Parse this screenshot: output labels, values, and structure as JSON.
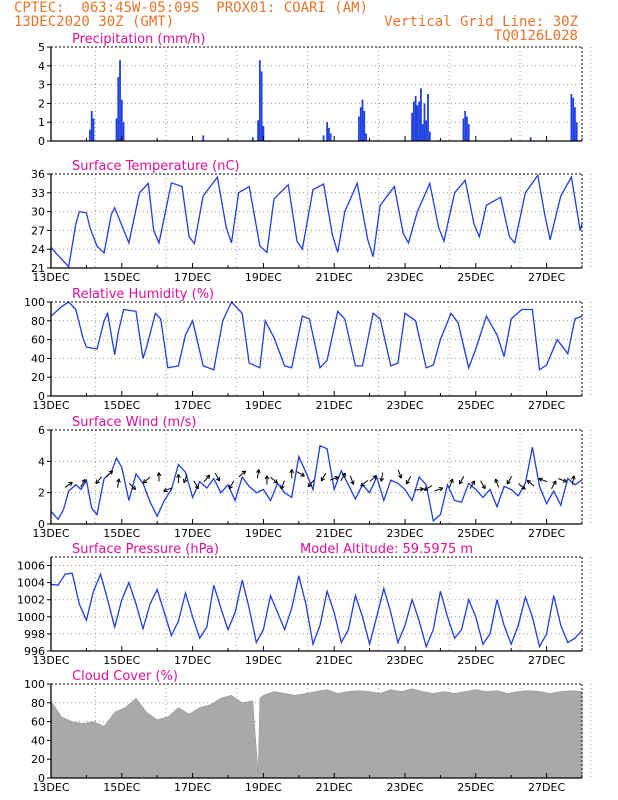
{
  "header": {
    "line1_left": "CPTEC:  063:45W-05:09S  PROX01: COARI (AM)",
    "line2_left": "13DEC2020 30Z (GMT)",
    "line2_right": "Vertical Grid Line: 30Z",
    "line3_right": "TQ0126L028"
  },
  "colors": {
    "header": "#e8752a",
    "title": "#e0109a",
    "series": "#1f3fe0",
    "cloud": "#a9a9a9",
    "grid": "#9a9a9a",
    "axis": "#000000"
  },
  "date_ticks": [
    "13DEC",
    "15DEC",
    "17DEC",
    "19DEC",
    "21DEC",
    "23DEC",
    "25DEC",
    "27DEC"
  ],
  "chart_data": [
    {
      "id": "precip",
      "type": "bar",
      "title": "Precipitation (mm/h)",
      "x_unit": "days since 13DEC 00Z",
      "ylim": [
        0,
        5
      ],
      "yticks": [
        "0",
        "1",
        "2",
        "3",
        "4",
        "5"
      ],
      "grid": true,
      "bars": [
        [
          1.1,
          0.6
        ],
        [
          1.15,
          1.6
        ],
        [
          1.2,
          1.2
        ],
        [
          1.85,
          1.2
        ],
        [
          1.9,
          3.4
        ],
        [
          1.95,
          4.3
        ],
        [
          2.0,
          2.2
        ],
        [
          2.05,
          1.0
        ],
        [
          4.3,
          0.3
        ],
        [
          5.7,
          0.2
        ],
        [
          5.85,
          1.1
        ],
        [
          5.9,
          4.3
        ],
        [
          5.95,
          3.7
        ],
        [
          6.0,
          0.8
        ],
        [
          7.7,
          0.3
        ],
        [
          7.8,
          1.0
        ],
        [
          7.85,
          0.7
        ],
        [
          7.9,
          0.4
        ],
        [
          8.7,
          1.3
        ],
        [
          8.75,
          1.8
        ],
        [
          8.8,
          2.2
        ],
        [
          8.85,
          1.6
        ],
        [
          8.9,
          0.4
        ],
        [
          10.2,
          1.5
        ],
        [
          10.25,
          2.1
        ],
        [
          10.3,
          2.4
        ],
        [
          10.35,
          1.9
        ],
        [
          10.4,
          2.1
        ],
        [
          10.45,
          2.8
        ],
        [
          10.5,
          0.9
        ],
        [
          10.55,
          2.0
        ],
        [
          10.6,
          1.1
        ],
        [
          10.65,
          2.5
        ],
        [
          10.7,
          0.5
        ],
        [
          11.65,
          1.2
        ],
        [
          11.7,
          1.6
        ],
        [
          11.75,
          1.3
        ],
        [
          11.8,
          0.9
        ],
        [
          13.55,
          0.2
        ],
        [
          14.7,
          2.5
        ],
        [
          14.75,
          2.3
        ],
        [
          14.8,
          1.8
        ],
        [
          14.85,
          1.0
        ]
      ]
    },
    {
      "id": "temp",
      "type": "line",
      "title": "Surface Temperature (nC)",
      "ylim": [
        21,
        36
      ],
      "yticks": [
        "21",
        "24",
        "27",
        "30",
        "33",
        "36"
      ],
      "grid": true,
      "x": [
        0,
        0.2,
        0.4,
        0.5,
        0.7,
        0.8,
        1.0,
        1.1,
        1.3,
        1.5,
        1.7,
        1.8,
        2.0,
        2.2,
        2.5,
        2.75,
        2.9,
        3.05,
        3.4,
        3.7,
        3.9,
        4.05,
        4.3,
        4.7,
        4.95,
        5.1,
        5.3,
        5.6,
        5.9,
        6.1,
        6.3,
        6.7,
        6.95,
        7.1,
        7.4,
        7.7,
        7.95,
        8.1,
        8.3,
        8.65,
        8.95,
        9.1,
        9.3,
        9.7,
        9.95,
        10.1,
        10.35,
        10.7,
        10.95,
        11.1,
        11.4,
        11.7,
        11.95,
        12.1,
        12.3,
        12.7,
        12.95,
        13.1,
        13.4,
        13.75,
        13.95,
        14.1,
        14.4,
        14.7,
        14.95,
        15.0
      ],
      "y": [
        24.3,
        23.0,
        21.8,
        21.2,
        28.0,
        30.0,
        29.8,
        27.5,
        24.5,
        23.4,
        29.5,
        30.6,
        27.8,
        25.0,
        33.0,
        34.5,
        27.0,
        25.0,
        34.6,
        34.0,
        26.0,
        24.9,
        32.5,
        35.5,
        27.5,
        25.0,
        33.0,
        34.0,
        24.5,
        23.5,
        32.0,
        34.3,
        25.3,
        24.0,
        33.5,
        34.4,
        26.3,
        23.5,
        30.0,
        34.5,
        25.5,
        22.8,
        31.0,
        34.0,
        26.5,
        25.0,
        30.0,
        34.5,
        27.5,
        25.3,
        33.0,
        35.0,
        28.0,
        26.0,
        31.0,
        32.3,
        26.0,
        25.0,
        33.0,
        35.8,
        29.5,
        25.5,
        32.5,
        35.5,
        27.0,
        28.0
      ]
    },
    {
      "id": "rh",
      "type": "line",
      "title": "Relative Humidity (%)",
      "ylim": [
        0,
        100
      ],
      "yticks": [
        "0",
        "20",
        "40",
        "60",
        "80",
        "100"
      ],
      "grid": true,
      "x": [
        0,
        0.3,
        0.5,
        0.7,
        0.9,
        1.0,
        1.3,
        1.5,
        1.6,
        1.8,
        1.9,
        2.05,
        2.4,
        2.6,
        2.7,
        2.95,
        3.1,
        3.3,
        3.6,
        3.8,
        4.0,
        4.3,
        4.6,
        4.85,
        5.1,
        5.4,
        5.6,
        5.9,
        6.05,
        6.3,
        6.6,
        6.8,
        7.1,
        7.3,
        7.6,
        7.8,
        8.1,
        8.3,
        8.6,
        8.8,
        9.1,
        9.3,
        9.6,
        9.8,
        10.0,
        10.3,
        10.6,
        10.8,
        11.0,
        11.3,
        11.5,
        11.8,
        12.0,
        12.3,
        12.6,
        12.8,
        13.0,
        13.3,
        13.6,
        13.8,
        14.0,
        14.3,
        14.6,
        14.8,
        15.0
      ],
      "y": [
        85,
        95,
        100,
        92,
        62,
        52,
        50,
        80,
        88,
        44,
        68,
        92,
        90,
        40,
        52,
        88,
        82,
        30,
        32,
        65,
        80,
        32,
        28,
        80,
        100,
        88,
        35,
        30,
        80,
        62,
        32,
        30,
        85,
        82,
        30,
        38,
        90,
        82,
        32,
        32,
        88,
        82,
        32,
        35,
        88,
        80,
        30,
        33,
        60,
        88,
        78,
        30,
        50,
        85,
        65,
        42,
        82,
        92,
        92,
        28,
        33,
        60,
        45,
        82,
        85
      ]
    },
    {
      "id": "wind",
      "type": "line",
      "title": "Surface Wind (m/s)",
      "ylim": [
        0,
        6
      ],
      "yticks": [
        "0",
        "2",
        "4",
        "6"
      ],
      "grid": true,
      "x": [
        0,
        0.2,
        0.35,
        0.5,
        0.7,
        0.85,
        1.0,
        1.15,
        1.3,
        1.5,
        1.7,
        1.85,
        2.0,
        2.2,
        2.4,
        2.6,
        2.8,
        3.0,
        3.2,
        3.4,
        3.6,
        3.8,
        4.0,
        4.2,
        4.4,
        4.6,
        4.8,
        5.0,
        5.2,
        5.4,
        5.6,
        5.8,
        6.0,
        6.2,
        6.4,
        6.6,
        6.8,
        7.0,
        7.2,
        7.4,
        7.6,
        7.8,
        8.0,
        8.2,
        8.4,
        8.6,
        8.8,
        9.0,
        9.2,
        9.4,
        9.6,
        9.8,
        10.0,
        10.2,
        10.4,
        10.6,
        10.8,
        11.0,
        11.2,
        11.4,
        11.6,
        11.8,
        12.0,
        12.2,
        12.4,
        12.6,
        12.8,
        13.0,
        13.2,
        13.4,
        13.6,
        13.8,
        14.0,
        14.2,
        14.4,
        14.6,
        14.8,
        15.0
      ],
      "y": [
        0.8,
        0.3,
        0.9,
        2.1,
        2.5,
        2.2,
        2.8,
        1.0,
        0.6,
        2.9,
        3.3,
        4.2,
        3.6,
        1.5,
        3.2,
        2.6,
        1.4,
        0.5,
        1.5,
        2.2,
        3.8,
        3.3,
        1.7,
        2.7,
        2.3,
        2.9,
        2.0,
        2.5,
        1.5,
        3.0,
        2.4,
        2.0,
        2.2,
        1.5,
        2.6,
        2.0,
        1.7,
        4.3,
        3.3,
        2.2,
        5.0,
        4.8,
        2.2,
        3.4,
        2.5,
        1.6,
        2.5,
        2.0,
        3.0,
        1.5,
        2.8,
        2.6,
        2.2,
        1.5,
        3.0,
        2.5,
        0.2,
        0.6,
        2.5,
        1.5,
        1.4,
        2.6,
        2.2,
        1.7,
        2.2,
        1.1,
        2.4,
        2.2,
        1.8,
        2.6,
        4.9,
        2.4,
        1.3,
        2.1,
        1.2,
        2.9,
        2.5,
        2.8
      ],
      "vectors": [
        [
          0.5,
          2.5,
          35
        ],
        [
          0.9,
          2.6,
          60
        ],
        [
          1.35,
          2.8,
          -130
        ],
        [
          1.65,
          3.2,
          45
        ],
        [
          1.9,
          2.6,
          80
        ],
        [
          2.3,
          2.4,
          -45
        ],
        [
          2.7,
          2.8,
          -140
        ],
        [
          3.05,
          3.0,
          90
        ],
        [
          3.3,
          2.2,
          -160
        ],
        [
          3.6,
          2.9,
          90
        ],
        [
          3.8,
          2.9,
          -110
        ],
        [
          4.1,
          2.5,
          -60
        ],
        [
          4.4,
          2.9,
          50
        ],
        [
          4.7,
          3.0,
          -60
        ],
        [
          5.1,
          2.5,
          -120
        ],
        [
          5.4,
          3.2,
          40
        ],
        [
          5.85,
          3.2,
          80
        ],
        [
          6.1,
          2.8,
          90
        ],
        [
          6.3,
          2.8,
          -40
        ],
        [
          6.55,
          2.5,
          -110
        ],
        [
          6.8,
          3.2,
          90
        ],
        [
          7.05,
          3.2,
          -30
        ],
        [
          7.35,
          2.6,
          -130
        ],
        [
          7.7,
          3.0,
          -120
        ],
        [
          8.0,
          2.9,
          20
        ],
        [
          8.25,
          3.0,
          60
        ],
        [
          8.5,
          2.8,
          -70
        ],
        [
          8.85,
          2.6,
          -140
        ],
        [
          9.1,
          2.9,
          40
        ],
        [
          9.35,
          3.0,
          -100
        ],
        [
          9.85,
          3.2,
          -70
        ],
        [
          10.1,
          2.8,
          -120
        ],
        [
          10.4,
          2.2,
          10
        ],
        [
          10.65,
          2.3,
          -150
        ],
        [
          10.95,
          2.2,
          20
        ],
        [
          11.3,
          2.6,
          70
        ],
        [
          11.6,
          2.8,
          -120
        ],
        [
          11.9,
          2.5,
          60
        ],
        [
          12.2,
          2.5,
          -60
        ],
        [
          12.6,
          2.6,
          110
        ],
        [
          12.95,
          2.8,
          -120
        ],
        [
          13.3,
          2.4,
          -40
        ],
        [
          13.55,
          2.6,
          140
        ],
        [
          13.9,
          2.8,
          160
        ],
        [
          14.2,
          2.5,
          60
        ],
        [
          14.45,
          2.8,
          -20
        ],
        [
          14.75,
          2.8,
          80
        ]
      ]
    },
    {
      "id": "pres",
      "type": "line",
      "title": "Surface Pressure (hPa)",
      "annotation": "Model Altitude: 59.5975 m",
      "ylim": [
        996,
        1007
      ],
      "yticks": [
        "996",
        "998",
        "1000",
        "1002",
        "1004",
        "1006"
      ],
      "grid": true,
      "x": [
        0,
        0.2,
        0.4,
        0.6,
        0.8,
        1.0,
        1.2,
        1.4,
        1.6,
        1.8,
        2.0,
        2.2,
        2.4,
        2.6,
        2.8,
        3.0,
        3.2,
        3.4,
        3.6,
        3.8,
        4.0,
        4.2,
        4.4,
        4.6,
        4.8,
        5.0,
        5.2,
        5.4,
        5.6,
        5.8,
        6.0,
        6.2,
        6.4,
        6.6,
        6.8,
        7.0,
        7.2,
        7.4,
        7.6,
        7.8,
        8.0,
        8.2,
        8.4,
        8.6,
        8.8,
        9.0,
        9.2,
        9.4,
        9.6,
        9.8,
        10.0,
        10.2,
        10.4,
        10.6,
        10.8,
        11.0,
        11.2,
        11.4,
        11.6,
        11.8,
        12.0,
        12.2,
        12.4,
        12.6,
        12.8,
        13.0,
        13.2,
        13.4,
        13.6,
        13.8,
        14.0,
        14.2,
        14.4,
        14.6,
        14.8,
        15.0
      ],
      "y": [
        1003.8,
        1003.7,
        1005.0,
        1005.1,
        1001.5,
        999.6,
        1003.0,
        1005.0,
        1002.0,
        998.8,
        1002.0,
        1004.0,
        1001.5,
        998.6,
        1001.5,
        1003.2,
        1000.5,
        997.8,
        999.5,
        1002.8,
        1000.0,
        997.5,
        998.8,
        1003.7,
        1001.0,
        998.5,
        1000.5,
        1004.3,
        1001.0,
        997.0,
        998.5,
        1002.5,
        1000.5,
        998.5,
        1001.0,
        1004.8,
        1001.5,
        996.8,
        999.0,
        1003.0,
        1000.5,
        997.0,
        998.5,
        1002.5,
        1000.0,
        996.8,
        1000.0,
        1003.3,
        1000.5,
        997.0,
        999.0,
        1002.0,
        999.5,
        996.5,
        998.5,
        1003.0,
        1000.0,
        997.5,
        998.5,
        1002.0,
        1000.0,
        996.8,
        998.0,
        1002.0,
        999.0,
        996.8,
        999.0,
        1002.3,
        1000.0,
        996.5,
        998.0,
        1002.5,
        999.0,
        997.0,
        997.5,
        998.4
      ]
    },
    {
      "id": "cloud",
      "type": "area",
      "title": "Cloud Cover (%)",
      "ylim": [
        0,
        100
      ],
      "yticks": [
        "0",
        "20",
        "40",
        "60",
        "80",
        "100"
      ],
      "grid": true,
      "x": [
        0,
        0.3,
        0.6,
        0.9,
        1.2,
        1.5,
        1.8,
        2.1,
        2.4,
        2.7,
        3.0,
        3.3,
        3.6,
        3.9,
        4.2,
        4.5,
        4.8,
        5.1,
        5.4,
        5.7,
        5.85,
        5.9,
        6.0,
        6.3,
        6.6,
        6.9,
        7.2,
        7.5,
        7.8,
        8.1,
        8.4,
        8.7,
        9.0,
        9.3,
        9.6,
        9.9,
        10.2,
        10.5,
        10.8,
        11.1,
        11.4,
        11.7,
        12.0,
        12.3,
        12.6,
        12.9,
        13.2,
        13.5,
        13.8,
        14.1,
        14.4,
        14.7,
        15.0
      ],
      "y": [
        82,
        65,
        60,
        58,
        60,
        55,
        70,
        75,
        85,
        70,
        62,
        65,
        75,
        68,
        75,
        78,
        85,
        88,
        80,
        82,
        5,
        85,
        88,
        92,
        90,
        88,
        90,
        92,
        94,
        90,
        92,
        93,
        92,
        90,
        94,
        92,
        95,
        92,
        90,
        92,
        90,
        92,
        94,
        92,
        93,
        90,
        92,
        93,
        92,
        90,
        92,
        93,
        92
      ]
    }
  ]
}
